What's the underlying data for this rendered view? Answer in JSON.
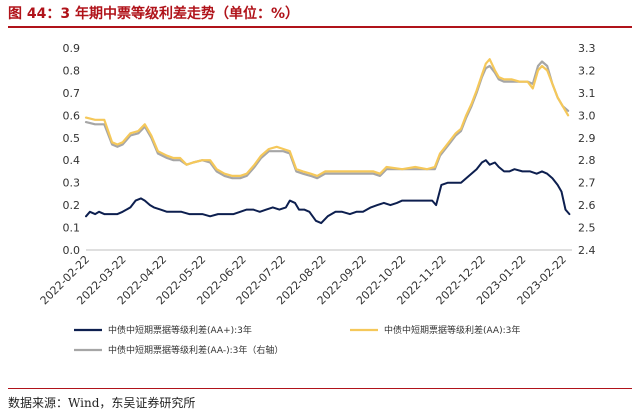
{
  "header": {
    "title": "图 44：3 年期中票等级利差走势（单位：%）"
  },
  "source": {
    "text": "数据来源：Wind，东吴证券研究所"
  },
  "colors": {
    "title_red": "#b0131a",
    "series_aa_plus": "#0d1f4f",
    "series_aa": "#f5c85a",
    "series_aa_minus": "#a6a6a6"
  },
  "chart_data": {
    "type": "line",
    "x_tick_labels": [
      "2022-02-22",
      "2022-03-22",
      "2022-04-22",
      "2022-05-22",
      "2022-06-22",
      "2022-07-22",
      "2022-08-22",
      "2022-09-22",
      "2022-10-22",
      "2022-11-22",
      "2022-12-22",
      "2023-01-22",
      "2023-02-22"
    ],
    "y_left": {
      "range": [
        0,
        0.9
      ],
      "ticks": [
        "0.0",
        "0.1",
        "0.2",
        "0.3",
        "0.4",
        "0.5",
        "0.6",
        "0.7",
        "0.8",
        "0.9"
      ]
    },
    "y_right": {
      "range": [
        2.4,
        3.3
      ],
      "ticks": [
        "2.4",
        "2.5",
        "2.6",
        "2.7",
        "2.8",
        "2.9",
        "3.0",
        "3.1",
        "3.2",
        "3.3"
      ]
    },
    "legend_placement": "bottom",
    "grid": false,
    "series": [
      {
        "name": "中债中短期票据等级利差(AA+):3年",
        "axis": "left",
        "points": [
          [
            "2022-02-22",
            0.15
          ],
          [
            "2022-02-25",
            0.17
          ],
          [
            "2022-03-01",
            0.16
          ],
          [
            "2022-03-04",
            0.17
          ],
          [
            "2022-03-08",
            0.16
          ],
          [
            "2022-03-14",
            0.16
          ],
          [
            "2022-03-18",
            0.16
          ],
          [
            "2022-03-22",
            0.17
          ],
          [
            "2022-03-28",
            0.19
          ],
          [
            "2022-04-01",
            0.22
          ],
          [
            "2022-04-05",
            0.23
          ],
          [
            "2022-04-08",
            0.22
          ],
          [
            "2022-04-12",
            0.2
          ],
          [
            "2022-04-15",
            0.19
          ],
          [
            "2022-04-20",
            0.18
          ],
          [
            "2022-04-25",
            0.17
          ],
          [
            "2022-04-30",
            0.17
          ],
          [
            "2022-05-06",
            0.17
          ],
          [
            "2022-05-12",
            0.16
          ],
          [
            "2022-05-18",
            0.16
          ],
          [
            "2022-05-22",
            0.16
          ],
          [
            "2022-05-28",
            0.15
          ],
          [
            "2022-06-03",
            0.16
          ],
          [
            "2022-06-09",
            0.16
          ],
          [
            "2022-06-15",
            0.16
          ],
          [
            "2022-06-20",
            0.17
          ],
          [
            "2022-06-25",
            0.18
          ],
          [
            "2022-06-30",
            0.18
          ],
          [
            "2022-07-05",
            0.17
          ],
          [
            "2022-07-10",
            0.18
          ],
          [
            "2022-07-15",
            0.19
          ],
          [
            "2022-07-20",
            0.18
          ],
          [
            "2022-07-25",
            0.19
          ],
          [
            "2022-07-28",
            0.22
          ],
          [
            "2022-08-01",
            0.21
          ],
          [
            "2022-08-04",
            0.18
          ],
          [
            "2022-08-08",
            0.18
          ],
          [
            "2022-08-12",
            0.17
          ],
          [
            "2022-08-17",
            0.13
          ],
          [
            "2022-08-21",
            0.12
          ],
          [
            "2022-08-26",
            0.15
          ],
          [
            "2022-09-01",
            0.17
          ],
          [
            "2022-09-06",
            0.17
          ],
          [
            "2022-09-12",
            0.16
          ],
          [
            "2022-09-17",
            0.17
          ],
          [
            "2022-09-22",
            0.17
          ],
          [
            "2022-09-28",
            0.19
          ],
          [
            "2022-10-03",
            0.2
          ],
          [
            "2022-10-08",
            0.21
          ],
          [
            "2022-10-13",
            0.2
          ],
          [
            "2022-10-18",
            0.21
          ],
          [
            "2022-10-22",
            0.22
          ],
          [
            "2022-10-28",
            0.22
          ],
          [
            "2022-11-03",
            0.22
          ],
          [
            "2022-11-09",
            0.22
          ],
          [
            "2022-11-14",
            0.22
          ],
          [
            "2022-11-17",
            0.2
          ],
          [
            "2022-11-21",
            0.29
          ],
          [
            "2022-11-26",
            0.3
          ],
          [
            "2022-12-01",
            0.3
          ],
          [
            "2022-12-06",
            0.3
          ],
          [
            "2022-12-10",
            0.32
          ],
          [
            "2022-12-14",
            0.34
          ],
          [
            "2022-12-18",
            0.36
          ],
          [
            "2022-12-22",
            0.39
          ],
          [
            "2022-12-25",
            0.4
          ],
          [
            "2022-12-28",
            0.38
          ],
          [
            "2023-01-01",
            0.39
          ],
          [
            "2023-01-04",
            0.37
          ],
          [
            "2023-01-08",
            0.35
          ],
          [
            "2023-01-12",
            0.35
          ],
          [
            "2023-01-16",
            0.36
          ],
          [
            "2023-01-22",
            0.35
          ],
          [
            "2023-01-28",
            0.35
          ],
          [
            "2023-02-02",
            0.34
          ],
          [
            "2023-02-06",
            0.35
          ],
          [
            "2023-02-10",
            0.34
          ],
          [
            "2023-02-14",
            0.32
          ],
          [
            "2023-02-18",
            0.29
          ],
          [
            "2023-02-21",
            0.26
          ],
          [
            "2023-02-24",
            0.18
          ],
          [
            "2023-02-27",
            0.16
          ]
        ]
      },
      {
        "name": "中债中短期票据等级利差(AA):3年",
        "axis": "left",
        "points": [
          [
            "2022-02-22",
            0.59
          ],
          [
            "2022-03-01",
            0.58
          ],
          [
            "2022-03-08",
            0.58
          ],
          [
            "2022-03-14",
            0.48
          ],
          [
            "2022-03-18",
            0.47
          ],
          [
            "2022-03-22",
            0.48
          ],
          [
            "2022-03-28",
            0.52
          ],
          [
            "2022-04-03",
            0.53
          ],
          [
            "2022-04-08",
            0.56
          ],
          [
            "2022-04-13",
            0.51
          ],
          [
            "2022-04-18",
            0.44
          ],
          [
            "2022-04-25",
            0.42
          ],
          [
            "2022-04-30",
            0.41
          ],
          [
            "2022-05-05",
            0.41
          ],
          [
            "2022-05-10",
            0.38
          ],
          [
            "2022-05-15",
            0.39
          ],
          [
            "2022-05-22",
            0.4
          ],
          [
            "2022-05-28",
            0.4
          ],
          [
            "2022-06-02",
            0.36
          ],
          [
            "2022-06-08",
            0.34
          ],
          [
            "2022-06-14",
            0.33
          ],
          [
            "2022-06-20",
            0.33
          ],
          [
            "2022-06-25",
            0.34
          ],
          [
            "2022-07-01",
            0.38
          ],
          [
            "2022-07-06",
            0.42
          ],
          [
            "2022-07-12",
            0.45
          ],
          [
            "2022-07-18",
            0.46
          ],
          [
            "2022-07-23",
            0.45
          ],
          [
            "2022-07-28",
            0.44
          ],
          [
            "2022-08-02",
            0.36
          ],
          [
            "2022-08-07",
            0.35
          ],
          [
            "2022-08-13",
            0.34
          ],
          [
            "2022-08-18",
            0.33
          ],
          [
            "2022-08-24",
            0.35
          ],
          [
            "2022-09-01",
            0.35
          ],
          [
            "2022-09-10",
            0.35
          ],
          [
            "2022-09-20",
            0.35
          ],
          [
            "2022-09-30",
            0.35
          ],
          [
            "2022-10-05",
            0.34
          ],
          [
            "2022-10-10",
            0.37
          ],
          [
            "2022-10-22",
            0.36
          ],
          [
            "2022-11-01",
            0.37
          ],
          [
            "2022-11-10",
            0.36
          ],
          [
            "2022-11-16",
            0.37
          ],
          [
            "2022-11-20",
            0.43
          ],
          [
            "2022-11-24",
            0.46
          ],
          [
            "2022-11-28",
            0.49
          ],
          [
            "2022-12-02",
            0.52
          ],
          [
            "2022-12-06",
            0.54
          ],
          [
            "2022-12-10",
            0.6
          ],
          [
            "2022-12-14",
            0.65
          ],
          [
            "2022-12-18",
            0.71
          ],
          [
            "2022-12-22",
            0.78
          ],
          [
            "2022-12-25",
            0.83
          ],
          [
            "2022-12-28",
            0.85
          ],
          [
            "2023-01-01",
            0.8
          ],
          [
            "2023-01-04",
            0.77
          ],
          [
            "2023-01-08",
            0.76
          ],
          [
            "2023-01-14",
            0.76
          ],
          [
            "2023-01-20",
            0.75
          ],
          [
            "2023-01-26",
            0.75
          ],
          [
            "2023-01-30",
            0.72
          ],
          [
            "2023-02-03",
            0.8
          ],
          [
            "2023-02-06",
            0.82
          ],
          [
            "2023-02-10",
            0.8
          ],
          [
            "2023-02-14",
            0.74
          ],
          [
            "2023-02-18",
            0.68
          ],
          [
            "2023-02-22",
            0.64
          ],
          [
            "2023-02-26",
            0.6
          ]
        ]
      },
      {
        "name": "中债中短期票据等级利差(AA-):3年（右轴）",
        "axis": "right",
        "points": [
          [
            "2022-02-22",
            2.97
          ],
          [
            "2022-03-01",
            2.96
          ],
          [
            "2022-03-08",
            2.96
          ],
          [
            "2022-03-14",
            2.87
          ],
          [
            "2022-03-18",
            2.86
          ],
          [
            "2022-03-22",
            2.87
          ],
          [
            "2022-03-28",
            2.91
          ],
          [
            "2022-04-03",
            2.92
          ],
          [
            "2022-04-08",
            2.95
          ],
          [
            "2022-04-13",
            2.9
          ],
          [
            "2022-04-18",
            2.83
          ],
          [
            "2022-04-25",
            2.81
          ],
          [
            "2022-04-30",
            2.8
          ],
          [
            "2022-05-05",
            2.8
          ],
          [
            "2022-05-10",
            2.78
          ],
          [
            "2022-05-15",
            2.79
          ],
          [
            "2022-05-22",
            2.8
          ],
          [
            "2022-05-28",
            2.79
          ],
          [
            "2022-06-02",
            2.75
          ],
          [
            "2022-06-08",
            2.73
          ],
          [
            "2022-06-14",
            2.72
          ],
          [
            "2022-06-20",
            2.72
          ],
          [
            "2022-06-25",
            2.73
          ],
          [
            "2022-07-01",
            2.77
          ],
          [
            "2022-07-06",
            2.81
          ],
          [
            "2022-07-12",
            2.84
          ],
          [
            "2022-07-18",
            2.84
          ],
          [
            "2022-07-23",
            2.84
          ],
          [
            "2022-07-28",
            2.83
          ],
          [
            "2022-08-02",
            2.75
          ],
          [
            "2022-08-07",
            2.74
          ],
          [
            "2022-08-13",
            2.73
          ],
          [
            "2022-08-18",
            2.72
          ],
          [
            "2022-08-24",
            2.74
          ],
          [
            "2022-09-01",
            2.74
          ],
          [
            "2022-09-10",
            2.74
          ],
          [
            "2022-09-20",
            2.74
          ],
          [
            "2022-09-30",
            2.74
          ],
          [
            "2022-10-05",
            2.73
          ],
          [
            "2022-10-10",
            2.76
          ],
          [
            "2022-10-22",
            2.76
          ],
          [
            "2022-11-01",
            2.76
          ],
          [
            "2022-11-10",
            2.76
          ],
          [
            "2022-11-16",
            2.76
          ],
          [
            "2022-11-20",
            2.82
          ],
          [
            "2022-11-24",
            2.85
          ],
          [
            "2022-11-28",
            2.88
          ],
          [
            "2022-12-02",
            2.91
          ],
          [
            "2022-12-06",
            2.93
          ],
          [
            "2022-12-10",
            2.99
          ],
          [
            "2022-12-14",
            3.04
          ],
          [
            "2022-12-18",
            3.1
          ],
          [
            "2022-12-22",
            3.17
          ],
          [
            "2022-12-25",
            3.21
          ],
          [
            "2022-12-28",
            3.22
          ],
          [
            "2023-01-01",
            3.19
          ],
          [
            "2023-01-04",
            3.16
          ],
          [
            "2023-01-08",
            3.15
          ],
          [
            "2023-01-14",
            3.15
          ],
          [
            "2023-01-20",
            3.15
          ],
          [
            "2023-01-26",
            3.15
          ],
          [
            "2023-01-30",
            3.14
          ],
          [
            "2023-02-03",
            3.22
          ],
          [
            "2023-02-06",
            3.24
          ],
          [
            "2023-02-10",
            3.22
          ],
          [
            "2023-02-14",
            3.14
          ],
          [
            "2023-02-18",
            3.08
          ],
          [
            "2023-02-22",
            3.04
          ],
          [
            "2023-02-26",
            3.02
          ]
        ]
      }
    ]
  }
}
